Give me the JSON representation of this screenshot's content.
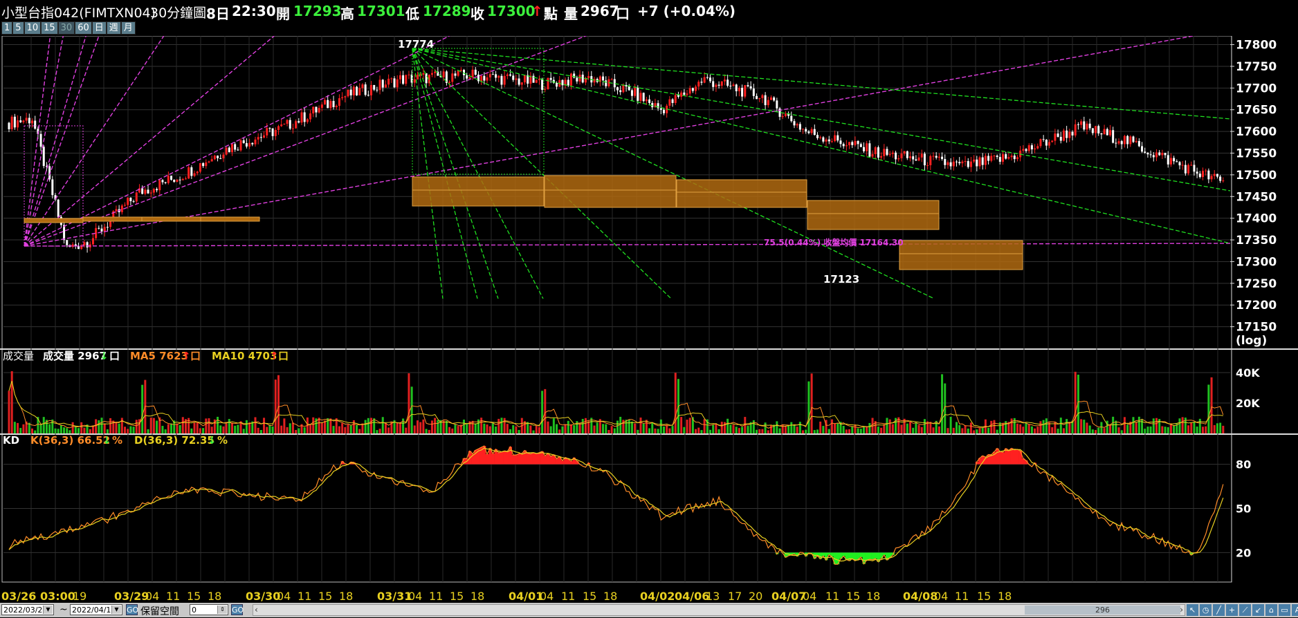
{
  "header": {
    "symbol": "小型台指042(FIMTXN04)",
    "period": "30分鐘圖",
    "day": "8日",
    "time": "22:30",
    "open_label": "開",
    "open": "17293",
    "high_label": "高",
    "high": "17301",
    "low_label": "低",
    "low": "17289",
    "close_label": "收",
    "close": "17300",
    "arrow": "↑",
    "unit_label": "點",
    "vol_label": "量",
    "vol": "2967",
    "vol_unit": "口",
    "change": "+7 (+0.04%)"
  },
  "periods": [
    "1",
    "5",
    "10",
    "15",
    "30",
    "60",
    "日",
    "週",
    "月"
  ],
  "selected_period": "30",
  "price_axis": {
    "ticks": [
      "17800",
      "17750",
      "17700",
      "17650",
      "17600",
      "17550",
      "17500",
      "17450",
      "17400",
      "17350",
      "17300",
      "17250",
      "17200",
      "17150"
    ],
    "scale_label": "(log)"
  },
  "annotations": {
    "peak": "17774",
    "trough": "17123",
    "note": "75.5(0.44%) 收盤均價 17164.30"
  },
  "volume_panel": {
    "title": "成交量",
    "vol_label": "成交量 2967",
    "vol_arrow": "↓",
    "vol_unit": "口",
    "ma5_label": "MA5 7623",
    "ma5_arrow": "↑",
    "ma5_unit": "口",
    "ma10_label": "MA10 4703",
    "ma10_arrow": "↑",
    "ma10_unit": "口",
    "ticks": [
      "40K",
      "20K"
    ]
  },
  "kd_panel": {
    "title": "KD",
    "k_label": "K(36,3) 66.52",
    "k_arrow": "↓",
    "k_unit": "%",
    "d_label": "D(36,3) 72.35",
    "d_arrow": "↓",
    "d_unit": "%",
    "ticks": [
      "80",
      "50",
      "20"
    ]
  },
  "time_axis": [
    "03/26 03:00",
    "19",
    "03/29",
    "04",
    "11",
    "15",
    "18",
    "03/30",
    "04",
    "11",
    "15",
    "18",
    "03/31",
    "04",
    "11",
    "15",
    "18",
    "04/01",
    "04",
    "11",
    "15",
    "18",
    "04/02",
    "04/06",
    "13",
    "17",
    "20",
    "04/07",
    "04",
    "11",
    "15",
    "18",
    "04/08",
    "04",
    "11",
    "15",
    "18"
  ],
  "bottom_bar": {
    "start_date": "2022/03/2",
    "tilde": "~",
    "end_date": "2022/04/1",
    "reserve_label": "保留空間",
    "reserve_value": "0",
    "scroll_value": "296"
  },
  "colors": {
    "up": "#ff2020",
    "down": "#ffffff",
    "gann_up": "#e040e0",
    "gann_down": "#20e020",
    "box": "#c87d1e",
    "k_line": "#ff8c28",
    "d_line": "#e8d020",
    "vol_green": "#20c020",
    "vol_red": "#e02020"
  }
}
